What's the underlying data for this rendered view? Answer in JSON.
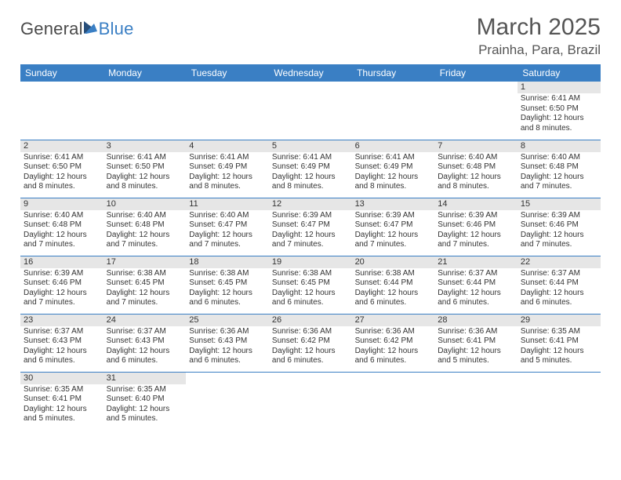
{
  "brand": {
    "name_a": "General",
    "name_b": "Blue"
  },
  "title": "March 2025",
  "location": "Prainha, Para, Brazil",
  "colors": {
    "header_bg": "#3a7fc4",
    "grid_line": "#3a7fc4",
    "daynum_bg": "#e6e6e6",
    "text": "#333333",
    "title_text": "#555555"
  },
  "weekdays": [
    "Sunday",
    "Monday",
    "Tuesday",
    "Wednesday",
    "Thursday",
    "Friday",
    "Saturday"
  ],
  "weeks": [
    [
      {
        "n": "",
        "lines": []
      },
      {
        "n": "",
        "lines": []
      },
      {
        "n": "",
        "lines": []
      },
      {
        "n": "",
        "lines": []
      },
      {
        "n": "",
        "lines": []
      },
      {
        "n": "",
        "lines": []
      },
      {
        "n": "1",
        "lines": [
          "Sunrise: 6:41 AM",
          "Sunset: 6:50 PM",
          "Daylight: 12 hours",
          "and 8 minutes."
        ]
      }
    ],
    [
      {
        "n": "2",
        "lines": [
          "Sunrise: 6:41 AM",
          "Sunset: 6:50 PM",
          "Daylight: 12 hours",
          "and 8 minutes."
        ]
      },
      {
        "n": "3",
        "lines": [
          "Sunrise: 6:41 AM",
          "Sunset: 6:50 PM",
          "Daylight: 12 hours",
          "and 8 minutes."
        ]
      },
      {
        "n": "4",
        "lines": [
          "Sunrise: 6:41 AM",
          "Sunset: 6:49 PM",
          "Daylight: 12 hours",
          "and 8 minutes."
        ]
      },
      {
        "n": "5",
        "lines": [
          "Sunrise: 6:41 AM",
          "Sunset: 6:49 PM",
          "Daylight: 12 hours",
          "and 8 minutes."
        ]
      },
      {
        "n": "6",
        "lines": [
          "Sunrise: 6:41 AM",
          "Sunset: 6:49 PM",
          "Daylight: 12 hours",
          "and 8 minutes."
        ]
      },
      {
        "n": "7",
        "lines": [
          "Sunrise: 6:40 AM",
          "Sunset: 6:48 PM",
          "Daylight: 12 hours",
          "and 8 minutes."
        ]
      },
      {
        "n": "8",
        "lines": [
          "Sunrise: 6:40 AM",
          "Sunset: 6:48 PM",
          "Daylight: 12 hours",
          "and 7 minutes."
        ]
      }
    ],
    [
      {
        "n": "9",
        "lines": [
          "Sunrise: 6:40 AM",
          "Sunset: 6:48 PM",
          "Daylight: 12 hours",
          "and 7 minutes."
        ]
      },
      {
        "n": "10",
        "lines": [
          "Sunrise: 6:40 AM",
          "Sunset: 6:48 PM",
          "Daylight: 12 hours",
          "and 7 minutes."
        ]
      },
      {
        "n": "11",
        "lines": [
          "Sunrise: 6:40 AM",
          "Sunset: 6:47 PM",
          "Daylight: 12 hours",
          "and 7 minutes."
        ]
      },
      {
        "n": "12",
        "lines": [
          "Sunrise: 6:39 AM",
          "Sunset: 6:47 PM",
          "Daylight: 12 hours",
          "and 7 minutes."
        ]
      },
      {
        "n": "13",
        "lines": [
          "Sunrise: 6:39 AM",
          "Sunset: 6:47 PM",
          "Daylight: 12 hours",
          "and 7 minutes."
        ]
      },
      {
        "n": "14",
        "lines": [
          "Sunrise: 6:39 AM",
          "Sunset: 6:46 PM",
          "Daylight: 12 hours",
          "and 7 minutes."
        ]
      },
      {
        "n": "15",
        "lines": [
          "Sunrise: 6:39 AM",
          "Sunset: 6:46 PM",
          "Daylight: 12 hours",
          "and 7 minutes."
        ]
      }
    ],
    [
      {
        "n": "16",
        "lines": [
          "Sunrise: 6:39 AM",
          "Sunset: 6:46 PM",
          "Daylight: 12 hours",
          "and 7 minutes."
        ]
      },
      {
        "n": "17",
        "lines": [
          "Sunrise: 6:38 AM",
          "Sunset: 6:45 PM",
          "Daylight: 12 hours",
          "and 7 minutes."
        ]
      },
      {
        "n": "18",
        "lines": [
          "Sunrise: 6:38 AM",
          "Sunset: 6:45 PM",
          "Daylight: 12 hours",
          "and 6 minutes."
        ]
      },
      {
        "n": "19",
        "lines": [
          "Sunrise: 6:38 AM",
          "Sunset: 6:45 PM",
          "Daylight: 12 hours",
          "and 6 minutes."
        ]
      },
      {
        "n": "20",
        "lines": [
          "Sunrise: 6:38 AM",
          "Sunset: 6:44 PM",
          "Daylight: 12 hours",
          "and 6 minutes."
        ]
      },
      {
        "n": "21",
        "lines": [
          "Sunrise: 6:37 AM",
          "Sunset: 6:44 PM",
          "Daylight: 12 hours",
          "and 6 minutes."
        ]
      },
      {
        "n": "22",
        "lines": [
          "Sunrise: 6:37 AM",
          "Sunset: 6:44 PM",
          "Daylight: 12 hours",
          "and 6 minutes."
        ]
      }
    ],
    [
      {
        "n": "23",
        "lines": [
          "Sunrise: 6:37 AM",
          "Sunset: 6:43 PM",
          "Daylight: 12 hours",
          "and 6 minutes."
        ]
      },
      {
        "n": "24",
        "lines": [
          "Sunrise: 6:37 AM",
          "Sunset: 6:43 PM",
          "Daylight: 12 hours",
          "and 6 minutes."
        ]
      },
      {
        "n": "25",
        "lines": [
          "Sunrise: 6:36 AM",
          "Sunset: 6:43 PM",
          "Daylight: 12 hours",
          "and 6 minutes."
        ]
      },
      {
        "n": "26",
        "lines": [
          "Sunrise: 6:36 AM",
          "Sunset: 6:42 PM",
          "Daylight: 12 hours",
          "and 6 minutes."
        ]
      },
      {
        "n": "27",
        "lines": [
          "Sunrise: 6:36 AM",
          "Sunset: 6:42 PM",
          "Daylight: 12 hours",
          "and 6 minutes."
        ]
      },
      {
        "n": "28",
        "lines": [
          "Sunrise: 6:36 AM",
          "Sunset: 6:41 PM",
          "Daylight: 12 hours",
          "and 5 minutes."
        ]
      },
      {
        "n": "29",
        "lines": [
          "Sunrise: 6:35 AM",
          "Sunset: 6:41 PM",
          "Daylight: 12 hours",
          "and 5 minutes."
        ]
      }
    ],
    [
      {
        "n": "30",
        "lines": [
          "Sunrise: 6:35 AM",
          "Sunset: 6:41 PM",
          "Daylight: 12 hours",
          "and 5 minutes."
        ]
      },
      {
        "n": "31",
        "lines": [
          "Sunrise: 6:35 AM",
          "Sunset: 6:40 PM",
          "Daylight: 12 hours",
          "and 5 minutes."
        ]
      },
      {
        "n": "",
        "lines": []
      },
      {
        "n": "",
        "lines": []
      },
      {
        "n": "",
        "lines": []
      },
      {
        "n": "",
        "lines": []
      },
      {
        "n": "",
        "lines": []
      }
    ]
  ]
}
